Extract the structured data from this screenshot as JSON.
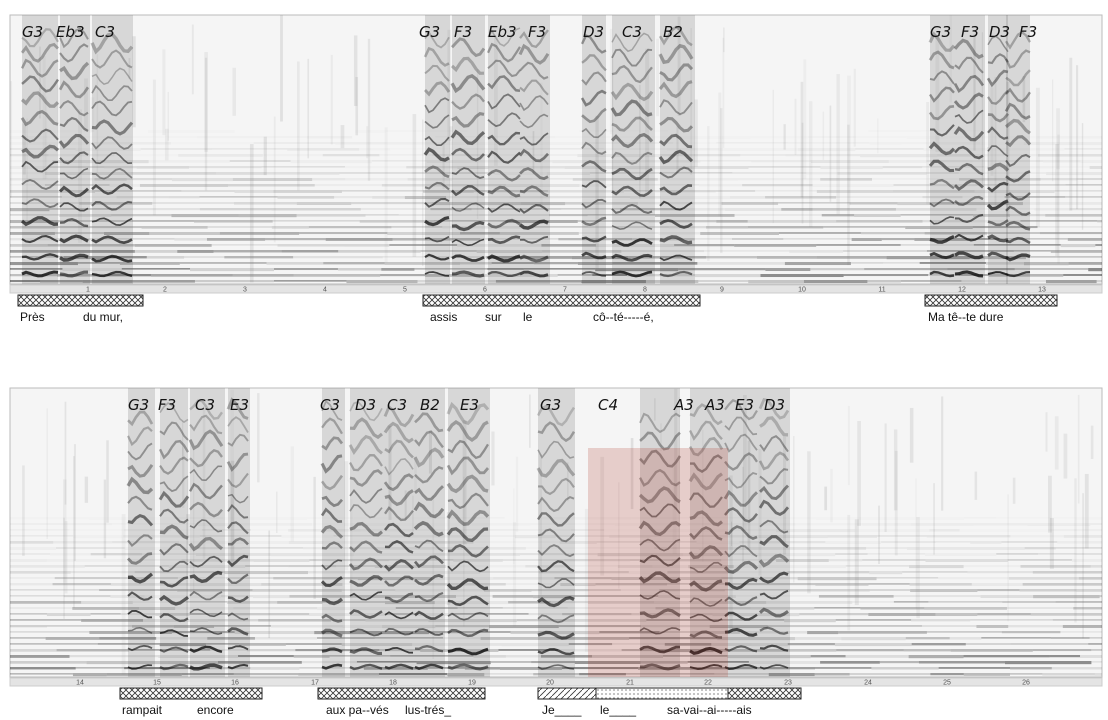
{
  "panels": [
    {
      "notes": [
        "G3",
        "Eb3",
        "C3",
        "G3",
        "F3",
        "Eb3",
        "F3",
        "D3",
        "C3",
        "B2",
        "G3",
        "F3",
        "D3",
        "F3"
      ],
      "time_ticks": [
        1,
        2,
        3,
        4,
        5,
        6,
        7,
        8,
        9,
        10,
        11,
        12,
        13
      ],
      "lyrics": [
        "Près",
        "du mur,",
        "assis",
        "sur",
        "le",
        "cô--té-----é,",
        "Ma tê--te dure"
      ]
    },
    {
      "notes": [
        "G3",
        "F3",
        "C3",
        "E3",
        "C3",
        "D3",
        "C3",
        "B2",
        "E3",
        "G3",
        "C4",
        "A3",
        "A3",
        "E3",
        "D3"
      ],
      "time_ticks": [
        14,
        15,
        16,
        17,
        18,
        19,
        20,
        21,
        22,
        23,
        24,
        25,
        26
      ],
      "lyrics": [
        "rampait",
        "encore",
        "aux pa--vés",
        "lus-trés_",
        "Je____",
        "le____",
        "sa-vai--ai-----ais"
      ]
    }
  ]
}
